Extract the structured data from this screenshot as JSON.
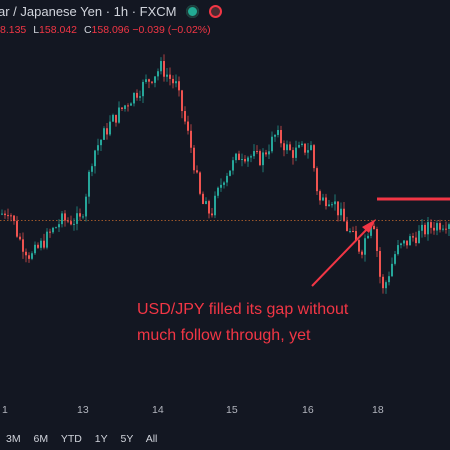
{
  "header": {
    "symbol": "ar / Japanese Yen · 1h · FXCM",
    "status_colors": {
      "market_open": "#22ab94",
      "alert": "#f23645"
    }
  },
  "ohlc": {
    "high_label": "",
    "high_value": "8.135",
    "low_label": "L",
    "low_value": "158.042",
    "close_label": "C",
    "close_value": "158.096",
    "change": "−0.039 (−0.02%)"
  },
  "x_axis_labels": [
    "1",
    "13",
    "14",
    "15",
    "16",
    "18"
  ],
  "range_buttons": [
    "3M",
    "6M",
    "YTD",
    "1Y",
    "5Y",
    "All"
  ],
  "annotation": {
    "line1": "USD/JPY filled its gap without",
    "line2": "much follow through, yet",
    "color": "#f23645"
  },
  "colors": {
    "up": "#26a69a",
    "down": "#ef5350",
    "background": "#131722",
    "dotted_line": "#c76b2e"
  },
  "chart_data": {
    "type": "candlestick",
    "instrument": "USD/JPY",
    "interval": "1h",
    "x_ticks": [
      "1",
      "13",
      "14",
      "15",
      "16",
      "18"
    ],
    "y_range_approx": [
      157.0,
      161.0
    ],
    "profile": [
      [
        0,
        158.2
      ],
      [
        8,
        158.3
      ],
      [
        18,
        157.8
      ],
      [
        30,
        157.5
      ],
      [
        45,
        157.8
      ],
      [
        60,
        158.1
      ],
      [
        80,
        158.1
      ],
      [
        92,
        159.2
      ],
      [
        110,
        159.7
      ],
      [
        130,
        160.1
      ],
      [
        160,
        160.6
      ],
      [
        175,
        160.3
      ],
      [
        190,
        159.3
      ],
      [
        200,
        158.4
      ],
      [
        210,
        158.2
      ],
      [
        222,
        158.8
      ],
      [
        240,
        159.2
      ],
      [
        260,
        159.1
      ],
      [
        275,
        159.5
      ],
      [
        290,
        159.2
      ],
      [
        310,
        159.3
      ],
      [
        318,
        158.4
      ],
      [
        330,
        158.5
      ],
      [
        345,
        158.0
      ],
      [
        360,
        157.6
      ],
      [
        372,
        158.2
      ],
      [
        381,
        156.9
      ],
      [
        395,
        157.6
      ],
      [
        410,
        157.8
      ],
      [
        430,
        158.0
      ],
      [
        448,
        158.1
      ]
    ],
    "reference_level": 158.1
  }
}
